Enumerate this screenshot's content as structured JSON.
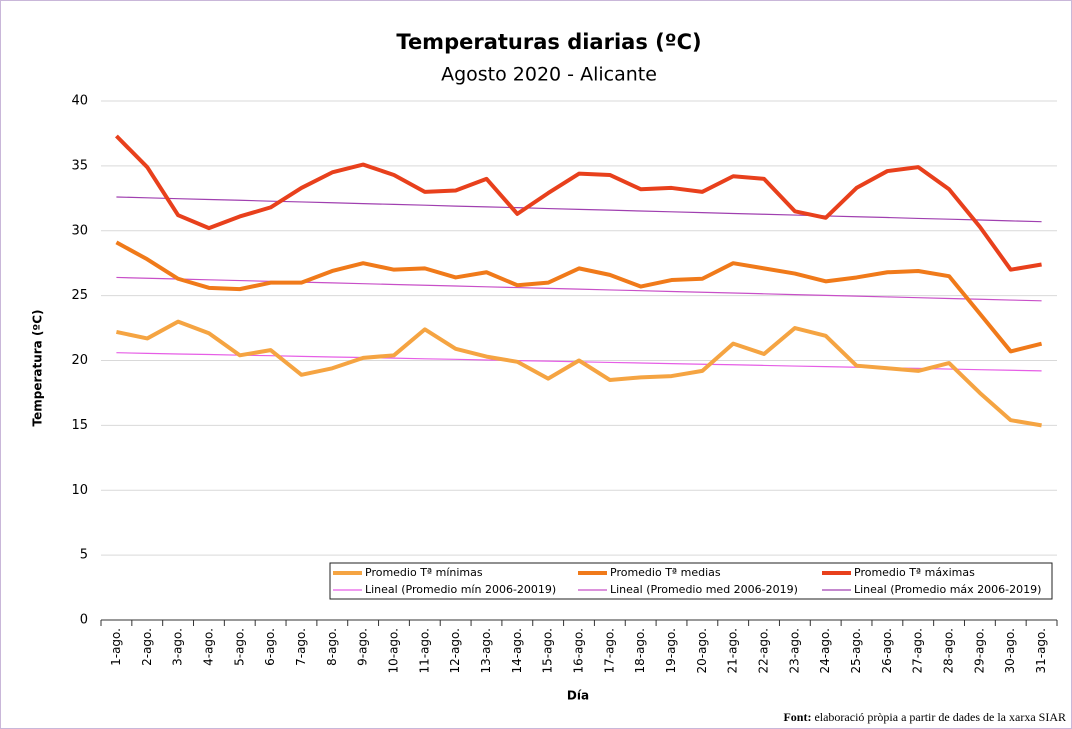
{
  "chart_data": {
    "type": "line",
    "title": "Temperaturas diarias (ºC)",
    "subtitle": "Agosto 2020 - Alicante",
    "x_label": "Día",
    "y_label": "Temperatura (ºC)",
    "categories": [
      "1-ago.",
      "2-ago.",
      "3-ago.",
      "4-ago.",
      "5-ago.",
      "6-ago.",
      "7-ago.",
      "8-ago.",
      "9-ago.",
      "10-ago.",
      "11-ago.",
      "12-ago.",
      "13-ago.",
      "14-ago.",
      "15-ago.",
      "16-ago.",
      "17-ago.",
      "18-ago.",
      "19-ago.",
      "20-ago.",
      "21-ago.",
      "22-ago.",
      "23-ago.",
      "24-ago.",
      "25-ago.",
      "26-ago.",
      "27-ago.",
      "28-ago.",
      "29-ago.",
      "30-ago.",
      "31-ago."
    ],
    "series": [
      {
        "name": "Promedio Tª mínimas",
        "color": "#f5a442",
        "values": [
          22.2,
          21.7,
          23.0,
          22.1,
          20.4,
          20.8,
          18.9,
          19.4,
          20.2,
          20.4,
          22.4,
          20.9,
          20.3,
          19.9,
          18.6,
          20.0,
          18.5,
          18.7,
          18.8,
          19.2,
          21.3,
          20.5,
          22.5,
          21.9,
          19.6,
          19.4,
          19.2,
          19.8,
          17.5,
          15.4,
          15.0
        ]
      },
      {
        "name": "Promedio Tª medias",
        "color": "#f07a1a",
        "values": [
          29.1,
          27.8,
          26.3,
          25.6,
          25.5,
          26.0,
          26.0,
          26.9,
          27.5,
          27.0,
          27.1,
          26.4,
          26.8,
          25.8,
          26.0,
          27.1,
          26.6,
          25.7,
          26.2,
          26.3,
          27.5,
          27.1,
          26.7,
          26.1,
          26.4,
          26.8,
          26.9,
          26.5,
          23.6,
          20.7,
          21.3
        ]
      },
      {
        "name": "Promedio Tª máximas",
        "color": "#e8401c",
        "values": [
          37.3,
          34.9,
          31.2,
          30.2,
          31.1,
          31.8,
          33.3,
          34.5,
          35.1,
          34.3,
          33.0,
          33.1,
          34.0,
          31.3,
          32.9,
          34.4,
          34.3,
          33.2,
          33.3,
          33.0,
          34.2,
          34.0,
          31.5,
          31.0,
          33.3,
          34.6,
          34.9,
          33.2,
          30.3,
          27.0,
          27.4
        ]
      },
      {
        "name": "Lineal (Promedio mín 2006-20019)",
        "color": "#e65ee6",
        "values": [
          20.6,
          20.55,
          20.5,
          20.46,
          20.41,
          20.37,
          20.32,
          20.27,
          20.23,
          20.18,
          20.13,
          20.09,
          20.04,
          19.99,
          19.95,
          19.9,
          19.85,
          19.81,
          19.76,
          19.71,
          19.67,
          19.62,
          19.57,
          19.53,
          19.48,
          19.43,
          19.39,
          19.34,
          19.29,
          19.25,
          19.2
        ]
      },
      {
        "name": "Lineal (Promedio med 2006-2019)",
        "color": "#c850c8",
        "values": [
          26.4,
          26.34,
          26.28,
          26.22,
          26.16,
          26.1,
          26.04,
          25.98,
          25.92,
          25.86,
          25.8,
          25.74,
          25.68,
          25.62,
          25.56,
          25.5,
          25.44,
          25.38,
          25.32,
          25.26,
          25.2,
          25.14,
          25.08,
          25.02,
          24.96,
          24.9,
          24.84,
          24.78,
          24.72,
          24.66,
          24.6
        ]
      },
      {
        "name": "Lineal (Promedio máx 2006-2019)",
        "color": "#a040b0",
        "values": [
          32.6,
          32.54,
          32.47,
          32.41,
          32.35,
          32.28,
          32.22,
          32.16,
          32.09,
          32.03,
          31.97,
          31.9,
          31.84,
          31.78,
          31.71,
          31.65,
          31.59,
          31.52,
          31.46,
          31.4,
          31.33,
          31.27,
          31.21,
          31.14,
          31.08,
          31.02,
          30.95,
          30.89,
          30.83,
          30.76,
          30.7
        ]
      }
    ],
    "ylim": [
      0,
      40
    ],
    "yticks": [
      0,
      5,
      10,
      15,
      20,
      25,
      30,
      35,
      40
    ],
    "grid": true,
    "legend": "bottom",
    "source_label": "Font:",
    "source_text": "elaboració pròpia a partir de dades de la xarxa SIAR"
  }
}
